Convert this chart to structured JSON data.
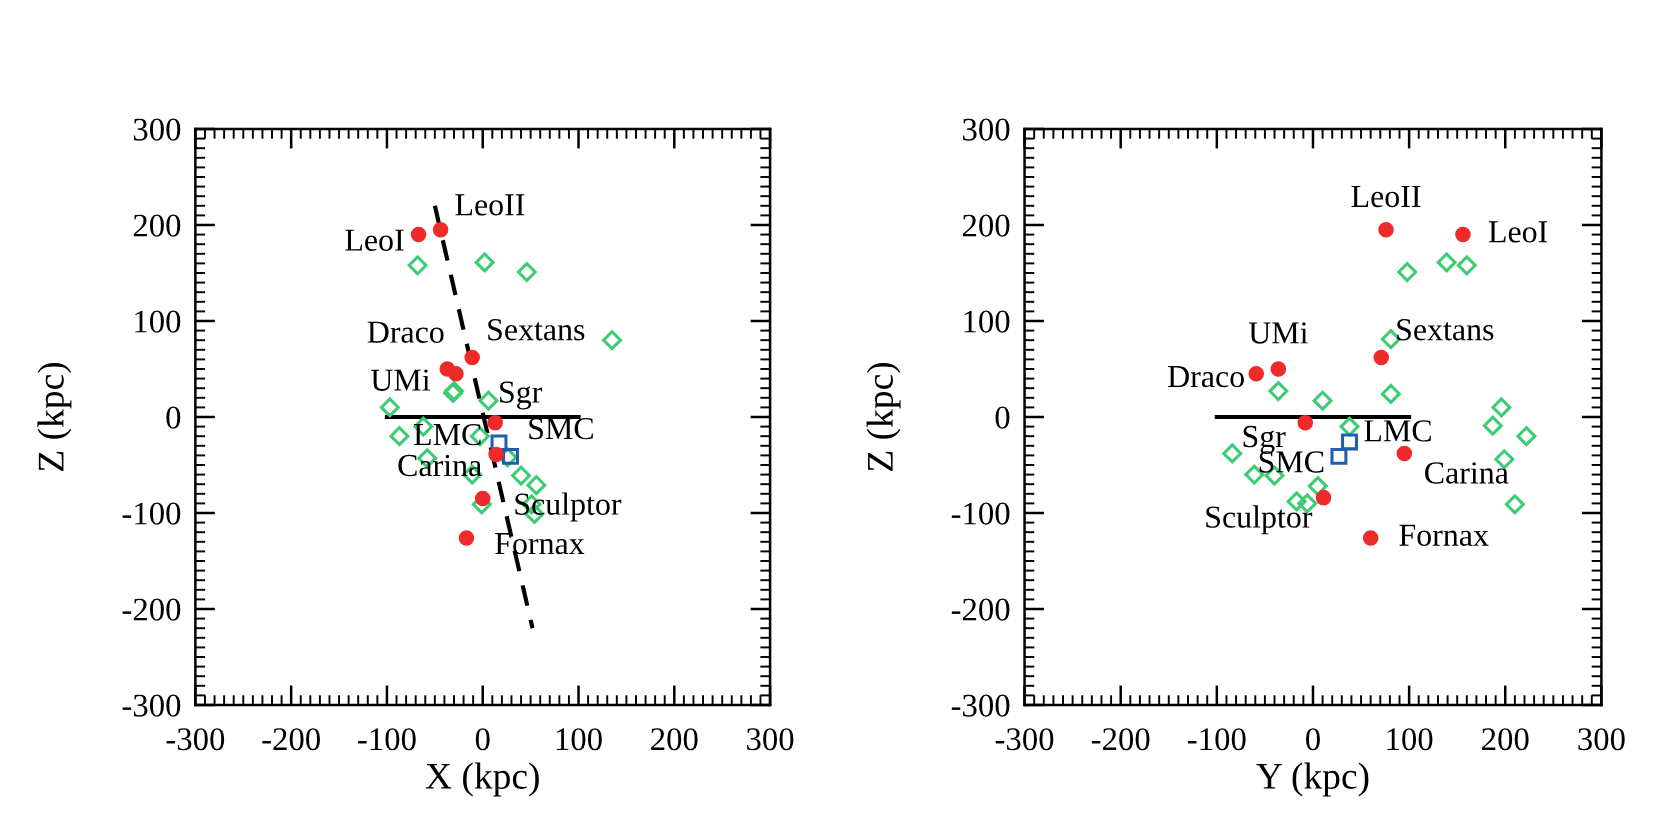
{
  "chart_data": [
    {
      "type": "scatter",
      "xlabel": "X (kpc)",
      "ylabel": "Z (kpc)",
      "xlim": [
        -300,
        300
      ],
      "ylim": [
        -300,
        300
      ],
      "xticks": [
        -300,
        -200,
        -100,
        0,
        100,
        200,
        300
      ],
      "yticks": [
        -300,
        -200,
        -100,
        0,
        100,
        200,
        300
      ],
      "series": [
        {
          "type": "scatter",
          "marker": "diamond",
          "color": "#3dcc73",
          "x": [
            -68,
            2,
            46,
            135,
            -97,
            -31,
            -30,
            6,
            -62,
            -87,
            -3,
            -58,
            -11,
            40,
            56,
            51,
            -1,
            54,
            26
          ],
          "values": [
            158,
            161,
            151,
            80,
            10,
            25,
            27,
            17,
            -10,
            -20,
            -20,
            -43,
            -60,
            -61,
            -71,
            -91,
            -91,
            -101,
            -42
          ]
        },
        {
          "type": "line",
          "line_style": "solid",
          "color": "#000000",
          "x": [
            -100,
            100
          ],
          "values": [
            0,
            0
          ]
        },
        {
          "type": "line",
          "line_style": "dashed",
          "color": "#000000",
          "x": [
            -50,
            52
          ],
          "values": [
            220,
            -220
          ]
        },
        {
          "type": "scatter",
          "marker": "circle",
          "color": "#ee2a2a",
          "x": [
            -67,
            -44,
            -28,
            -37,
            -11,
            13,
            14,
            0,
            -17
          ],
          "values": [
            190,
            195,
            45,
            50,
            62,
            -6,
            -39,
            -85,
            -126
          ]
        },
        {
          "type": "scatter",
          "marker": "square",
          "color": "#1f5fad",
          "x": [
            17,
            29
          ],
          "values": [
            -27,
            -41
          ]
        }
      ],
      "annotations": [
        {
          "text": "LeoI",
          "x": -67,
          "y": 190
        },
        {
          "text": "LeoII",
          "x": -44,
          "y": 195
        },
        {
          "text": "Draco",
          "x": -28,
          "y": 45
        },
        {
          "text": "UMi",
          "x": -37,
          "y": 50
        },
        {
          "text": "Sextans",
          "x": -11,
          "y": 62
        },
        {
          "text": "Sgr",
          "x": 13,
          "y": -6
        },
        {
          "text": "LMC",
          "x": 17,
          "y": -27
        },
        {
          "text": "SMC",
          "x": 29,
          "y": -41
        },
        {
          "text": "Carina",
          "x": 14,
          "y": -39
        },
        {
          "text": "Sculptor",
          "x": 0,
          "y": -85
        },
        {
          "text": "Fornax",
          "x": -17,
          "y": -126
        }
      ]
    },
    {
      "type": "scatter",
      "xlabel": "Y (kpc)",
      "ylabel": "Z (kpc)",
      "xlim": [
        -300,
        300
      ],
      "ylim": [
        -300,
        300
      ],
      "xticks": [
        -300,
        -200,
        -100,
        0,
        100,
        200,
        300
      ],
      "yticks": [
        -300,
        -200,
        -100,
        0,
        100,
        200,
        300
      ],
      "series": [
        {
          "type": "scatter",
          "marker": "diamond",
          "color": "#3dcc73",
          "x": [
            98,
            139,
            160,
            81,
            -36,
            10,
            81,
            38,
            196,
            187,
            222,
            199,
            210,
            -84,
            -61,
            -40,
            5,
            -17,
            -6
          ],
          "values": [
            151,
            161,
            158,
            81,
            27,
            17,
            24,
            -10,
            10,
            -9,
            -20,
            -44,
            -91,
            -38,
            -60,
            -61,
            -72,
            -88,
            -90
          ]
        },
        {
          "type": "line",
          "line_style": "solid",
          "color": "#000000",
          "x": [
            -100,
            100
          ],
          "values": [
            0,
            0
          ]
        },
        {
          "type": "scatter",
          "marker": "circle",
          "color": "#ee2a2a",
          "x": [
            156,
            76,
            -59,
            -36,
            71,
            -8,
            95,
            11,
            60
          ],
          "values": [
            190,
            195,
            45,
            50,
            62,
            -6,
            -38,
            -84,
            -126
          ]
        },
        {
          "type": "scatter",
          "marker": "square",
          "color": "#1f5fad",
          "x": [
            38,
            27
          ],
          "values": [
            -26,
            -41
          ]
        }
      ],
      "annotations": [
        {
          "text": "LeoI",
          "x": 156,
          "y": 190
        },
        {
          "text": "LeoII",
          "x": 76,
          "y": 195
        },
        {
          "text": "Draco",
          "x": -59,
          "y": 45
        },
        {
          "text": "UMi",
          "x": -36,
          "y": 50
        },
        {
          "text": "Sextans",
          "x": 71,
          "y": 62
        },
        {
          "text": "Sgr",
          "x": -8,
          "y": -6
        },
        {
          "text": "LMC",
          "x": 38,
          "y": -26
        },
        {
          "text": "SMC",
          "x": 27,
          "y": -41
        },
        {
          "text": "Carina",
          "x": 95,
          "y": -38
        },
        {
          "text": "Sculptor",
          "x": 11,
          "y": -84
        },
        {
          "text": "Fornax",
          "x": 60,
          "y": -126
        }
      ]
    }
  ]
}
